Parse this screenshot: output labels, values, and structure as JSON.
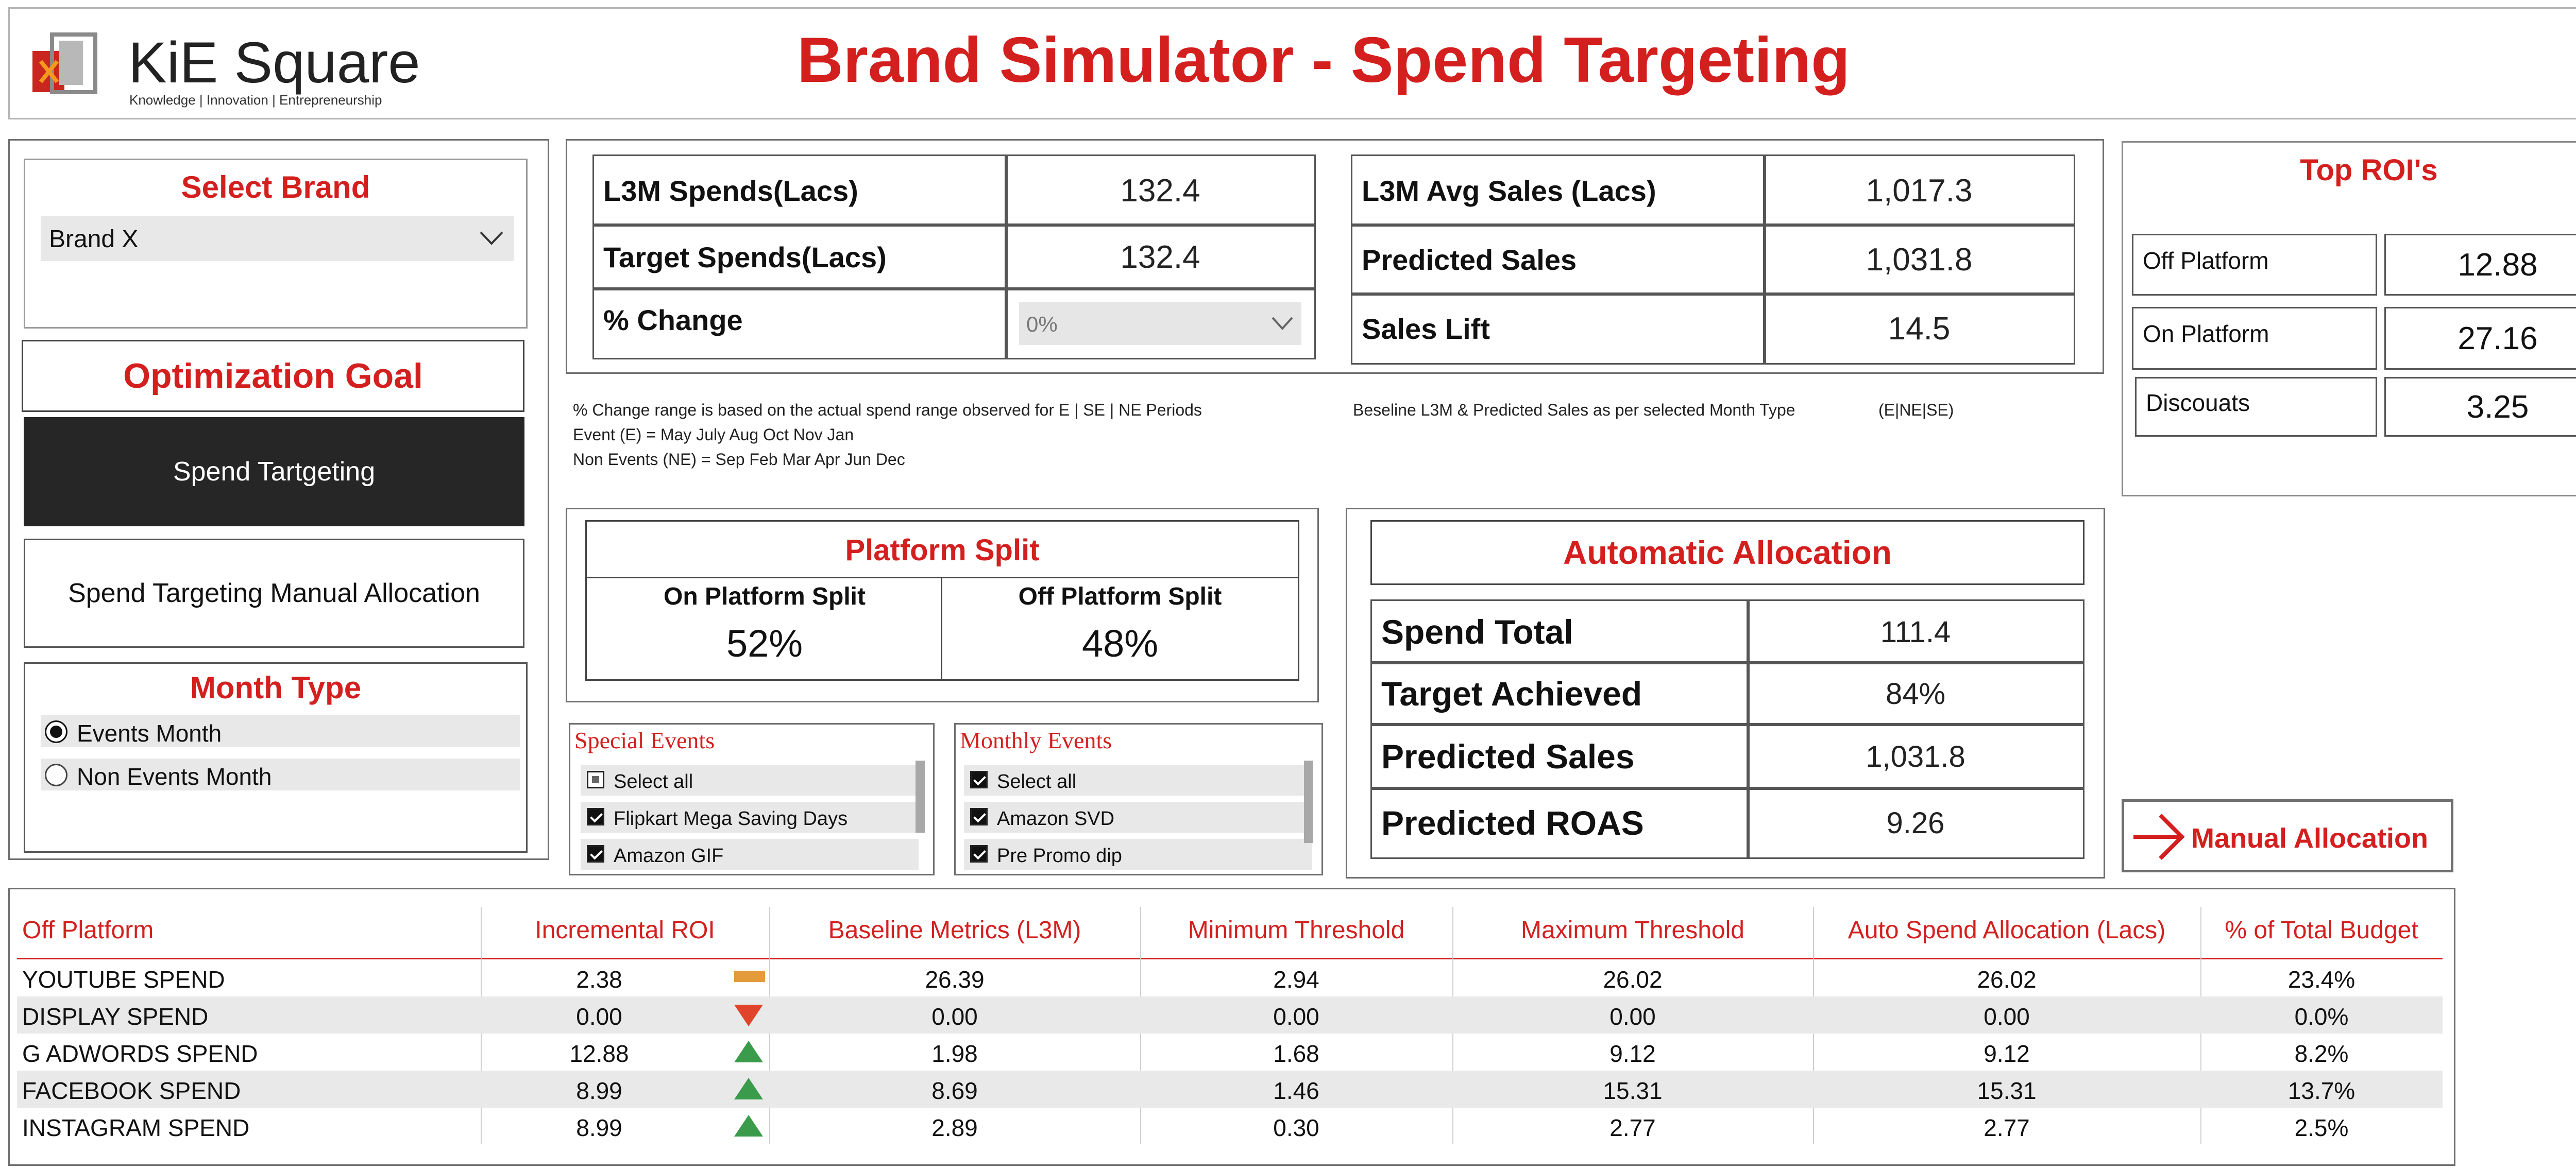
{
  "header": {
    "logo_name": "KiE Square",
    "logo_tagline": "Knowledge | Innovation | Entrepreneurship",
    "title": "Brand Simulator - Spend Targeting"
  },
  "brand": {
    "title": "Select Brand",
    "selected": "Brand X"
  },
  "optimization": {
    "title": "Optimization Goal",
    "btn_spend_targeting": "Spend Tartgeting",
    "btn_manual": "Spend Targeting Manual Allocation"
  },
  "month_type": {
    "title": "Month Type",
    "options": [
      "Events Month",
      "Non Events Month"
    ],
    "selected_index": 0
  },
  "spends": {
    "l3m_label": "L3M Spends(Lacs)",
    "l3m_value": "132.4",
    "target_label": "Target Spends(Lacs)",
    "target_value": "132.4",
    "change_label": "% Change",
    "change_value": "0%"
  },
  "sales": {
    "avg_label": "L3M Avg Sales (Lacs)",
    "avg_value": "1,017.3",
    "pred_label": "Predicted Sales",
    "pred_value": "1,031.8",
    "lift_label": "Sales Lift",
    "lift_value": "14.5"
  },
  "notes": {
    "line1": "% Change range is based on the actual spend range observed for E | SE | NE  Periods",
    "line2": "Event (E) =  May July Aug Oct Nov Jan",
    "line3": "Non Events (NE) = Sep Feb Mar Apr Jun Dec",
    "right1": "Beseline L3M & Predicted Sales as per selected Month Type",
    "right2": "(E|NE|SE)"
  },
  "top_roi": {
    "title": "Top ROI's",
    "rows": [
      {
        "label": "Off Platform",
        "value": "12.88"
      },
      {
        "label": "On Platform",
        "value": "27.16"
      },
      {
        "label": "Discouats",
        "value": "3.25"
      }
    ]
  },
  "platform_split": {
    "title": "Platform Split",
    "on_label": "On Platform Split",
    "on_value": "52%",
    "off_label": "Off Platform Split",
    "off_value": "48%"
  },
  "auto_alloc": {
    "title": "Automatic Allocation",
    "rows": [
      {
        "label": "Spend Total",
        "value": "111.4"
      },
      {
        "label": "Target Achieved",
        "value": "84%"
      },
      {
        "label": "Predicted Sales",
        "value": "1,031.8"
      },
      {
        "label": "Predicted ROAS",
        "value": "9.26"
      }
    ]
  },
  "special_events": {
    "title": "Special Events",
    "items": [
      "Select all",
      "Flipkart Mega Saving Days",
      "Amazon GIF"
    ]
  },
  "monthly_events": {
    "title": "Monthly Events",
    "items": [
      "Select all",
      "Amazon SVD",
      "Pre Promo dip"
    ]
  },
  "manual_allocation": {
    "label": "Manual Allocation"
  },
  "table": {
    "headers": [
      "Off Platform",
      "Incremental ROI",
      "Baseline Metrics (L3M)",
      "Minimum Threshold",
      "Maximum Threshold",
      "Auto Spend Allocation (Lacs)",
      "% of Total Budget"
    ],
    "rows": [
      [
        "YOUTUBE SPEND",
        "2.38",
        "26.39",
        "2.94",
        "26.02",
        "26.02",
        "23.4%"
      ],
      [
        "DISPLAY SPEND",
        "0.00",
        "0.00",
        "0.00",
        "0.00",
        "0.00",
        "0.0%"
      ],
      [
        "G ADWORDS SPEND",
        "12.88",
        "1.98",
        "1.68",
        "9.12",
        "9.12",
        "8.2%"
      ],
      [
        "FACEBOOK SPEND",
        "8.99",
        "8.69",
        "1.46",
        "15.31",
        "15.31",
        "13.7%"
      ],
      [
        "INSTAGRAM SPEND",
        "8.99",
        "2.89",
        "0.30",
        "2.77",
        "2.77",
        "2.5%"
      ]
    ],
    "indicators": [
      "flat",
      "down",
      "up",
      "up",
      "up"
    ]
  },
  "colors": {
    "accent_red": "#d41f1f",
    "indicator_up": "#3a9b4a",
    "indicator_down": "#e0452b",
    "indicator_flat": "#e39b3b"
  }
}
